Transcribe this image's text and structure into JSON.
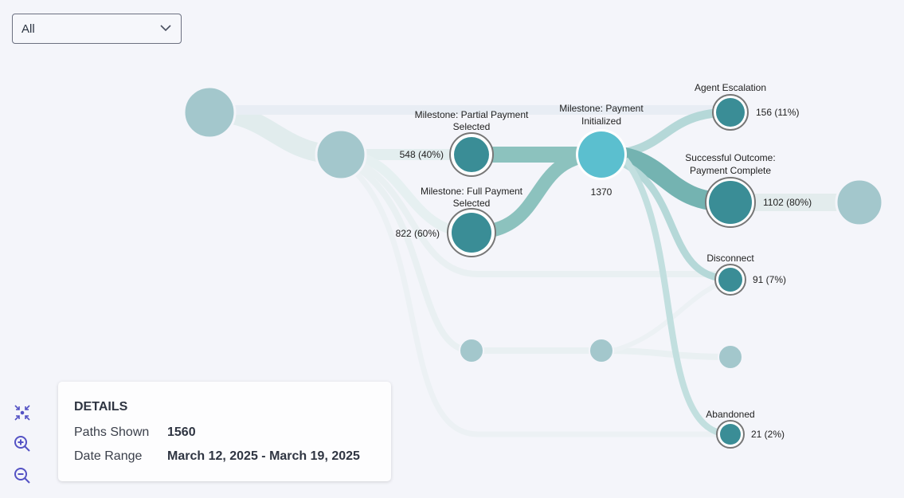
{
  "filter": {
    "selected": "All"
  },
  "colors": {
    "milestone": "#3a8d96",
    "initialized": "#5bbfcf",
    "inactive": "#a3c7cc",
    "link_strong": "#6fb3b0",
    "link_faint": "#e3eeef"
  },
  "nodes": {
    "partial": {
      "label1": "Milestone: Partial Payment",
      "label2": "Selected",
      "value": "548 (40%)"
    },
    "full": {
      "label1": "Milestone: Full Payment",
      "label2": "Selected",
      "value": "822 (60%)"
    },
    "initialized": {
      "label1": "Milestone: Payment",
      "label2": "Initialized",
      "value": "1370"
    },
    "agent": {
      "label1": "Agent Escalation",
      "value": "156 (11%)"
    },
    "success": {
      "label1": "Successful Outcome:",
      "label2": "Payment Complete",
      "value": "1102 (80%)"
    },
    "disconnect": {
      "label1": "Disconnect",
      "value": "91 (7%)"
    },
    "abandoned": {
      "label1": "Abandoned",
      "value": "21 (2%)"
    }
  },
  "controls": {
    "fit": "fit-to-screen-icon",
    "zoom_in": "zoom-in-icon",
    "zoom_out": "zoom-out-icon"
  },
  "details": {
    "title": "DETAILS",
    "paths_label": "Paths Shown",
    "paths_value": "1560",
    "date_label": "Date Range",
    "date_value": "March 12, 2025 - March 19, 2025"
  }
}
